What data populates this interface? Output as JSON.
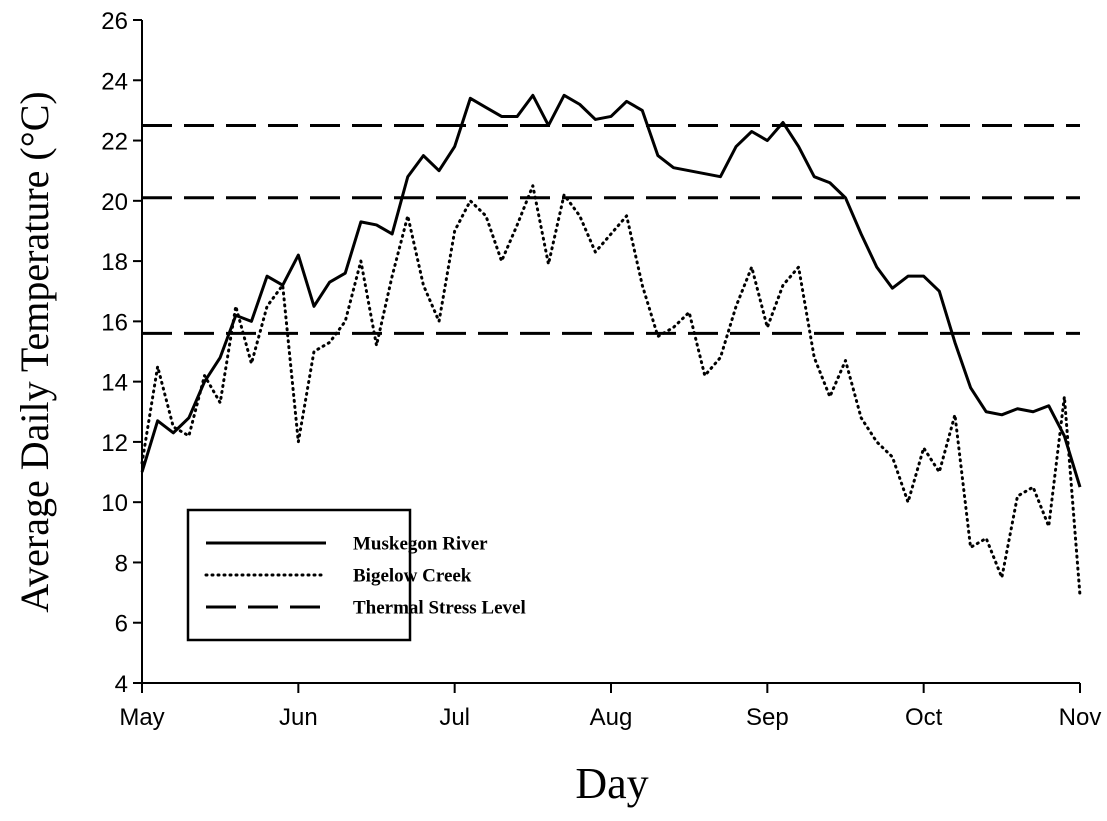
{
  "chart_data": {
    "type": "line",
    "x_label": "Day",
    "y_label": "Average Daily Temperature (°C)",
    "categories": [
      "May",
      null,
      null,
      null,
      null,
      null,
      null,
      null,
      null,
      null,
      "Jun",
      null,
      null,
      null,
      null,
      null,
      null,
      null,
      null,
      null,
      "Jul",
      null,
      null,
      null,
      null,
      null,
      null,
      null,
      null,
      null,
      "Aug",
      null,
      null,
      null,
      null,
      null,
      null,
      null,
      null,
      null,
      "Sep",
      null,
      null,
      null,
      null,
      null,
      null,
      null,
      null,
      null,
      "Oct",
      null,
      null,
      null,
      null,
      null,
      null,
      null,
      null,
      null,
      "Nov"
    ],
    "series": [
      {
        "name": "Muskegon River",
        "color": "#000000",
        "style": "solid",
        "values": [
          11.0,
          12.7,
          12.3,
          12.8,
          14.0,
          14.8,
          16.2,
          16.0,
          17.5,
          17.2,
          18.2,
          16.5,
          17.3,
          17.6,
          19.3,
          19.2,
          18.9,
          20.8,
          21.5,
          21.0,
          21.8,
          23.4,
          23.1,
          22.8,
          22.8,
          23.5,
          22.5,
          23.5,
          23.2,
          22.7,
          22.8,
          23.3,
          23.0,
          21.5,
          21.1,
          21.0,
          20.9,
          20.8,
          21.8,
          22.3,
          22.0,
          22.6,
          21.8,
          20.8,
          20.6,
          20.1,
          18.9,
          17.8,
          17.1,
          17.5,
          17.5,
          17.0,
          15.3,
          13.8,
          13.0,
          12.9,
          13.1,
          13.0,
          13.2,
          12.2,
          10.5
        ]
      },
      {
        "name": "Bigelow Creek",
        "color": "#000000",
        "style": "dotted",
        "values": [
          11.3,
          14.5,
          12.5,
          12.2,
          14.2,
          13.3,
          16.5,
          14.6,
          16.5,
          17.2,
          12.0,
          15.0,
          15.3,
          16.0,
          18.0,
          15.2,
          17.5,
          19.5,
          17.2,
          16.0,
          19.0,
          20.0,
          19.5,
          18.0,
          19.2,
          20.5,
          17.9,
          20.2,
          19.5,
          18.3,
          18.9,
          19.5,
          17.2,
          15.5,
          15.8,
          16.3,
          14.2,
          14.8,
          16.5,
          17.8,
          15.8,
          17.2,
          17.8,
          14.8,
          13.5,
          14.7,
          12.8,
          12.0,
          11.5,
          10.0,
          11.8,
          11.0,
          12.9,
          8.5,
          8.8,
          7.5,
          10.2,
          10.5,
          9.2,
          13.5,
          6.9
        ]
      }
    ],
    "reference_lines": {
      "name": "Thermal Stress Level",
      "color": "#000000",
      "style": "dashed",
      "values": [
        22.5,
        20.1,
        15.6
      ]
    },
    "ylim": [
      4,
      26
    ],
    "yticks": [
      4,
      6,
      8,
      10,
      12,
      14,
      16,
      18,
      20,
      22,
      24,
      26
    ],
    "grid": false,
    "legend": "lower left"
  }
}
